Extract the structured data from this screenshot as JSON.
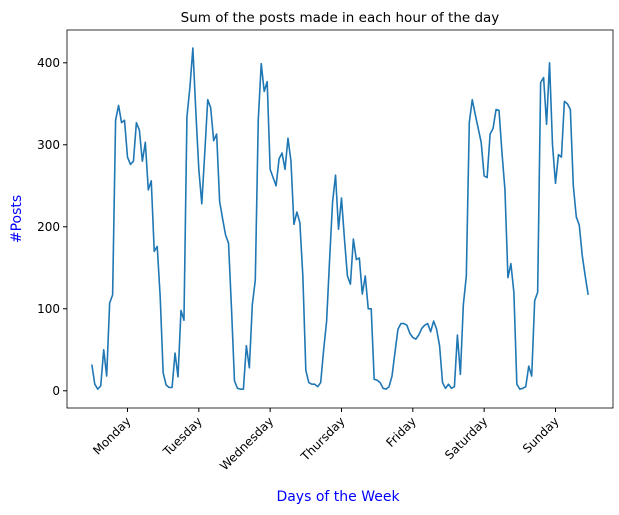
{
  "chart_data": {
    "type": "line",
    "title": "Sum of the posts made in each hour of the day",
    "xlabel": "Days of the Week",
    "ylabel": "#Posts",
    "x": [
      0,
      1,
      2,
      3,
      4,
      5,
      6,
      7,
      8,
      9,
      10,
      11,
      12,
      13,
      14,
      15,
      16,
      17,
      18,
      19,
      20,
      21,
      22,
      23,
      24,
      25,
      26,
      27,
      28,
      29,
      30,
      31,
      32,
      33,
      34,
      35,
      36,
      37,
      38,
      39,
      40,
      41,
      42,
      43,
      44,
      45,
      46,
      47,
      48,
      49,
      50,
      51,
      52,
      53,
      54,
      55,
      56,
      57,
      58,
      59,
      60,
      61,
      62,
      63,
      64,
      65,
      66,
      67,
      68,
      69,
      70,
      71,
      72,
      73,
      74,
      75,
      76,
      77,
      78,
      79,
      80,
      81,
      82,
      83,
      84,
      85,
      86,
      87,
      88,
      89,
      90,
      91,
      92,
      93,
      94,
      95,
      96,
      97,
      98,
      99,
      100,
      101,
      102,
      103,
      104,
      105,
      106,
      107,
      108,
      109,
      110,
      111,
      112,
      113,
      114,
      115,
      116,
      117,
      118,
      119,
      120,
      121,
      122,
      123,
      124,
      125,
      126,
      127,
      128,
      129,
      130,
      131,
      132,
      133,
      134,
      135,
      136,
      137,
      138,
      139,
      140,
      141,
      142,
      143,
      144,
      145,
      146,
      147,
      148,
      149,
      150,
      151,
      152,
      153,
      154,
      155,
      156,
      157,
      158,
      159,
      160,
      161,
      162,
      163,
      164,
      165,
      166,
      167
    ],
    "series": [
      {
        "name": "posts",
        "color": "#1f77b4",
        "values": [
          32,
          8,
          2,
          6,
          50,
          18,
          107,
          117,
          330,
          348,
          327,
          330,
          285,
          276,
          280,
          327,
          318,
          280,
          303,
          245,
          256,
          170,
          176,
          115,
          22,
          7,
          4,
          4,
          46,
          17,
          98,
          86,
          334,
          370,
          418,
          340,
          270,
          228,
          290,
          355,
          345,
          305,
          313,
          231,
          210,
          190,
          180,
          100,
          12,
          3,
          2,
          2,
          55,
          28,
          105,
          135,
          330,
          399,
          365,
          377,
          270,
          260,
          250,
          283,
          290,
          270,
          308,
          280,
          203,
          218,
          205,
          140,
          25,
          10,
          8,
          8,
          5,
          10,
          50,
          85,
          160,
          230,
          263,
          197,
          235,
          185,
          140,
          130,
          185,
          160,
          162,
          118,
          140,
          100,
          100,
          14,
          13,
          10,
          3,
          2,
          5,
          18,
          47,
          75,
          82,
          82,
          80,
          70,
          65,
          63,
          68,
          76,
          80,
          82,
          72,
          85,
          75,
          55,
          10,
          3,
          8,
          3,
          5,
          68,
          20,
          105,
          140,
          327,
          355,
          337,
          320,
          303,
          262,
          260,
          313,
          320,
          343,
          342,
          290,
          245,
          138,
          155,
          120,
          8,
          2,
          3,
          5,
          30,
          18,
          110,
          120,
          376,
          382,
          325,
          400,
          300,
          253,
          288,
          285,
          353,
          350,
          343,
          250,
          212,
          202,
          165,
          140,
          117
        ]
      }
    ],
    "xlim": [
      -8.35,
      175.35
    ],
    "ylim": [
      -21,
      440
    ],
    "xticks": [
      {
        "value": 12,
        "label": "Monday"
      },
      {
        "value": 36,
        "label": "Tuesday"
      },
      {
        "value": 60,
        "label": "Wednesday"
      },
      {
        "value": 84,
        "label": "Thursday"
      },
      {
        "value": 108,
        "label": "Friday"
      },
      {
        "value": 132,
        "label": "Saturday"
      },
      {
        "value": 156,
        "label": "Sunday"
      }
    ],
    "yticks": [
      0,
      100,
      200,
      300,
      400
    ]
  }
}
